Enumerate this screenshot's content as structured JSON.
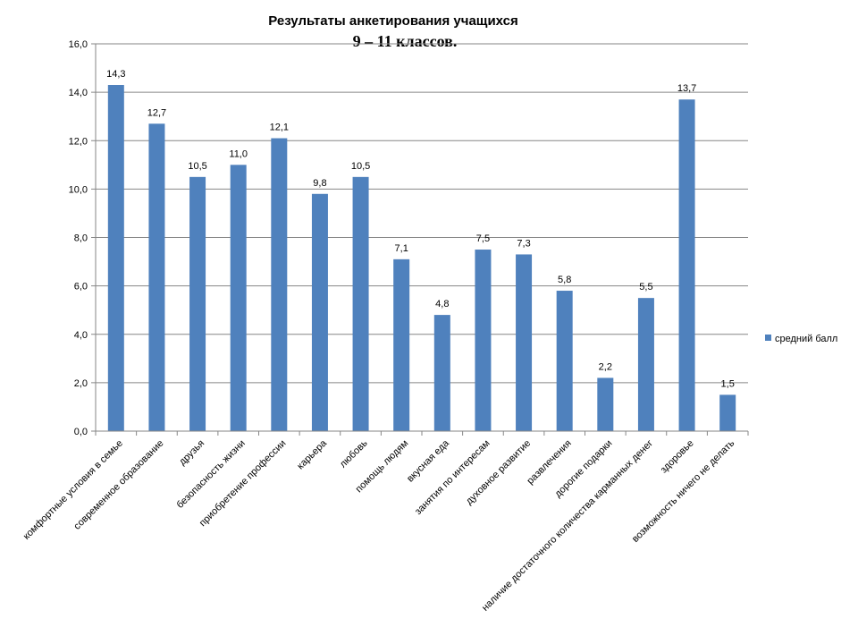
{
  "chart_data": {
    "type": "bar",
    "title": "Результаты анкетирования учащихся",
    "subtitle": "9 – 11 классов.",
    "categories": [
      "комфортные условия в семье",
      "современное образование",
      "друзья",
      "безопасность жизни",
      "приобретение  профессии",
      "карьера",
      "любовь",
      "помощь людям",
      "вкусная еда",
      "занятия по интересам",
      "духовное развитие",
      "развлечения",
      "дорогие подарки",
      "наличие достаточного количества карманных денег",
      "здоровье",
      "возможность ничего не делать"
    ],
    "series": [
      {
        "name": "средний балл",
        "values": [
          14.3,
          12.7,
          10.5,
          11.0,
          12.1,
          9.8,
          10.5,
          7.1,
          4.8,
          7.5,
          7.3,
          5.8,
          2.2,
          5.5,
          13.7,
          1.5
        ],
        "labels": [
          "14,3",
          "12,7",
          "10,5",
          "11,0",
          "12,1",
          "9,8",
          "10,5",
          "7,1",
          "4,8",
          "7,5",
          "7,3",
          "5,8",
          "2,2",
          "5,5",
          "13,7",
          "1,5"
        ],
        "color": "#4f81bd"
      }
    ],
    "ylim": [
      0,
      16
    ],
    "yticks": [
      "0,0",
      "2,0",
      "4,0",
      "6,0",
      "8,0",
      "10,0",
      "12,0",
      "14,0",
      "16,0"
    ],
    "grid": true,
    "legend": "right",
    "colors": {
      "grid": "#868686",
      "axis": "#868686",
      "bar": "#4f81bd"
    }
  }
}
